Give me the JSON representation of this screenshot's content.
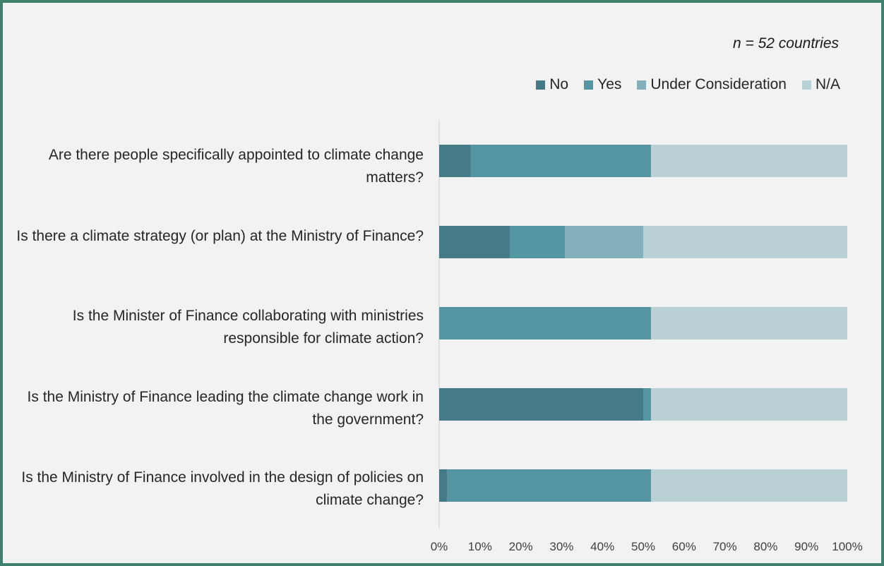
{
  "note": "n = 52 countries",
  "chart_data": {
    "type": "bar",
    "orientation": "horizontal",
    "stacked": true,
    "percent": true,
    "categories": [
      "Are there people specifically appointed to climate change matters?",
      "Is there a climate strategy (or plan) at the Ministry of Finance?",
      "Is the Minister of Finance collaborating with ministries responsible for climate action?",
      "Is the Ministry of Finance leading the climate change work in the government?",
      "Is the Ministry of Finance involved in the design of policies on climate change?"
    ],
    "series": [
      {
        "name": "No",
        "color": "#457b86",
        "values": [
          7.7,
          17.3,
          0,
          50,
          1.9
        ]
      },
      {
        "name": "Yes",
        "color": "#5497a3",
        "values": [
          44.2,
          13.5,
          51.9,
          1.9,
          50
        ]
      },
      {
        "name": "Under Consideration",
        "color": "#83b0ba",
        "values": [
          0,
          19.2,
          0,
          0,
          0
        ]
      },
      {
        "name": "N/A",
        "color": "#b9d0d5",
        "values": [
          48.1,
          50,
          48.1,
          48.1,
          48.1
        ]
      }
    ],
    "xlim": [
      0,
      100
    ],
    "xticks": [
      "0%",
      "10%",
      "20%",
      "30%",
      "40%",
      "50%",
      "60%",
      "70%",
      "80%",
      "90%",
      "100%"
    ],
    "legend_position": "top-right",
    "grid": false
  }
}
